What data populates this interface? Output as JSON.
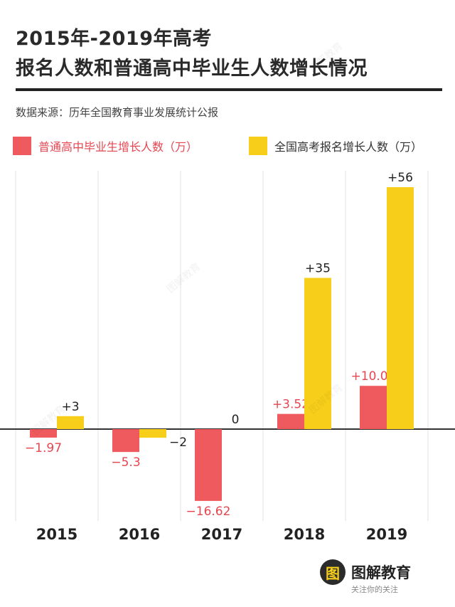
{
  "title_line1": "2015年-2019年高考",
  "title_line2": "报名人数和普通高中毕业生人数增长情况",
  "source": "数据来源：历年全国教育事业发展统计公报",
  "brand": {
    "name": "图解教育",
    "sub": "关注你的关注"
  },
  "watermark": "图解教育",
  "colors": {
    "red": "#ef5a5e",
    "yellow": "#f7cf1a",
    "red_text": "#e64650"
  },
  "chart_data": {
    "type": "bar",
    "categories": [
      "2015",
      "2016",
      "2017",
      "2018",
      "2019"
    ],
    "series": [
      {
        "name": "普通高中毕业生增长人数（万）",
        "values": [
          -1.97,
          -5.3,
          -16.62,
          3.52,
          10.01
        ],
        "labels": [
          "−1.97",
          "−5.3",
          "−16.62",
          "+3.52",
          "+10.01"
        ],
        "color": "#ef5a5e"
      },
      {
        "name": "全国高考报名增长人数（万）",
        "values": [
          3,
          -2,
          0,
          35,
          56
        ],
        "labels": [
          "+3",
          "−2",
          "0",
          "+35",
          "+56"
        ],
        "color": "#f7cf1a"
      }
    ],
    "ylim": [
      -20,
      56
    ],
    "legend": "top-left",
    "grid": false
  }
}
